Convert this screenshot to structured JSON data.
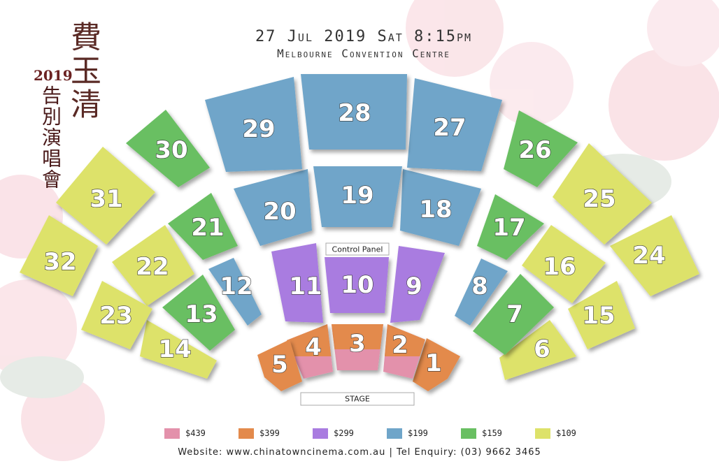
{
  "header": {
    "title_zh": "費玉清",
    "year": "2019",
    "subtitle_zh": "告別演唱會",
    "date_time": "27 Jul 2019 Sat 8:15pm",
    "venue": "Melbourne Convention Centre"
  },
  "labels": {
    "control_panel": "Control Panel",
    "stage": "STAGE"
  },
  "price_colors": {
    "$439": "#e391ab",
    "$399": "#e38a4c",
    "$299": "#a97ce0",
    "$199": "#6fa5c9",
    "$159": "#69bf62",
    "$109": "#dde26a"
  },
  "legend": [
    {
      "price": "$439",
      "color": "#e391ab"
    },
    {
      "price": "$399",
      "color": "#e38a4c"
    },
    {
      "price": "$299",
      "color": "#a97ce0"
    },
    {
      "price": "$199",
      "color": "#6fa5c9"
    },
    {
      "price": "$159",
      "color": "#69bf62"
    },
    {
      "price": "$109",
      "color": "#dde26a"
    }
  ],
  "sections": [
    {
      "id": "1",
      "price": "$399"
    },
    {
      "id": "2",
      "price": "$439",
      "secondary_price": "$399"
    },
    {
      "id": "3",
      "price": "$439",
      "secondary_price": "$399"
    },
    {
      "id": "4",
      "price": "$439",
      "secondary_price": "$399"
    },
    {
      "id": "5",
      "price": "$399"
    },
    {
      "id": "6",
      "price": "$109"
    },
    {
      "id": "7",
      "price": "$159"
    },
    {
      "id": "8",
      "price": "$199"
    },
    {
      "id": "9",
      "price": "$299"
    },
    {
      "id": "10",
      "price": "$299"
    },
    {
      "id": "11",
      "price": "$299"
    },
    {
      "id": "12",
      "price": "$199"
    },
    {
      "id": "13",
      "price": "$159"
    },
    {
      "id": "14",
      "price": "$109"
    },
    {
      "id": "15",
      "price": "$109"
    },
    {
      "id": "16",
      "price": "$109"
    },
    {
      "id": "17",
      "price": "$159"
    },
    {
      "id": "18",
      "price": "$199"
    },
    {
      "id": "19",
      "price": "$199"
    },
    {
      "id": "20",
      "price": "$199"
    },
    {
      "id": "21",
      "price": "$159"
    },
    {
      "id": "22",
      "price": "$109"
    },
    {
      "id": "23",
      "price": "$109"
    },
    {
      "id": "24",
      "price": "$109"
    },
    {
      "id": "25",
      "price": "$109"
    },
    {
      "id": "26",
      "price": "$159"
    },
    {
      "id": "27",
      "price": "$199"
    },
    {
      "id": "28",
      "price": "$199"
    },
    {
      "id": "29",
      "price": "$199"
    },
    {
      "id": "30",
      "price": "$159"
    },
    {
      "id": "31",
      "price": "$109"
    },
    {
      "id": "32",
      "price": "$109"
    }
  ],
  "footer": "Website: www.chinatowncinema.com.au | Tel Enquiry: (03) 9662 3465"
}
